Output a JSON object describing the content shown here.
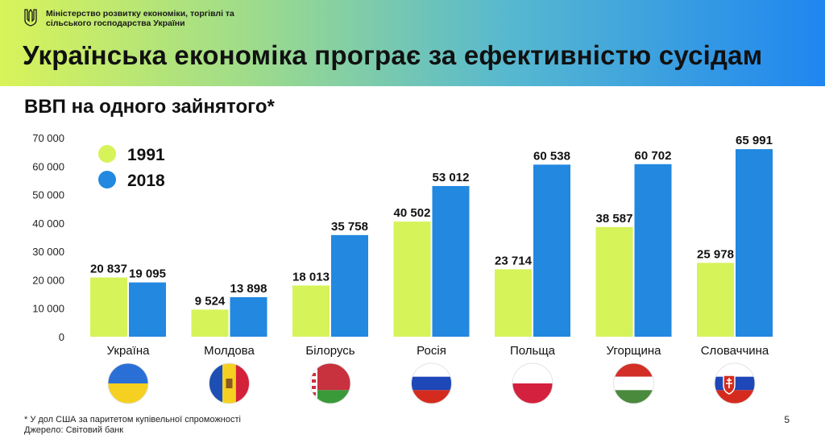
{
  "header": {
    "ministry": "Міністерство розвитку економіки, торгівлі та сільського господарства України",
    "title": "Українська економіка програє за ефективністю сусідам"
  },
  "subtitle": "ВВП на одного зайнятого*",
  "chart_data": {
    "type": "bar",
    "title": "ВВП на одного зайнятого*",
    "categories": [
      "Україна",
      "Молдова",
      "Білорусь",
      "Росія",
      "Польща",
      "Угорщина",
      "Словаччина"
    ],
    "series": [
      {
        "name": "1991",
        "color": "#d6f35a",
        "values": [
          20837,
          9524,
          18013,
          40502,
          23714,
          38587,
          25978
        ],
        "labels": [
          "20 837",
          "9 524",
          "18 013",
          "40 502",
          "23 714",
          "38 587",
          "25 978"
        ]
      },
      {
        "name": "2018",
        "color": "#2288e0",
        "values": [
          19095,
          13898,
          35758,
          53012,
          60538,
          60702,
          65991
        ],
        "labels": [
          "19 095",
          "13 898",
          "35 758",
          "53 012",
          "60 538",
          "60 702",
          "65 991"
        ]
      }
    ],
    "ylim": [
      0,
      70000
    ],
    "yticks": [
      0,
      10000,
      20000,
      30000,
      40000,
      50000,
      60000,
      70000
    ],
    "ytick_labels": [
      "0",
      "10 000",
      "20 000",
      "30 000",
      "40 000",
      "50 000",
      "60 000",
      "70 000"
    ],
    "legend": "top-left",
    "grid": false,
    "flags": [
      "flag-ukraine-icon",
      "flag-moldova-icon",
      "flag-belarus-icon",
      "flag-russia-icon",
      "flag-poland-icon",
      "flag-hungary-icon",
      "flag-slovakia-icon"
    ]
  },
  "footnote": {
    "note": "* У дол США за паритетом купівельної спроможності",
    "source": "Джерело: Світовий банк"
  },
  "page_number": "5"
}
